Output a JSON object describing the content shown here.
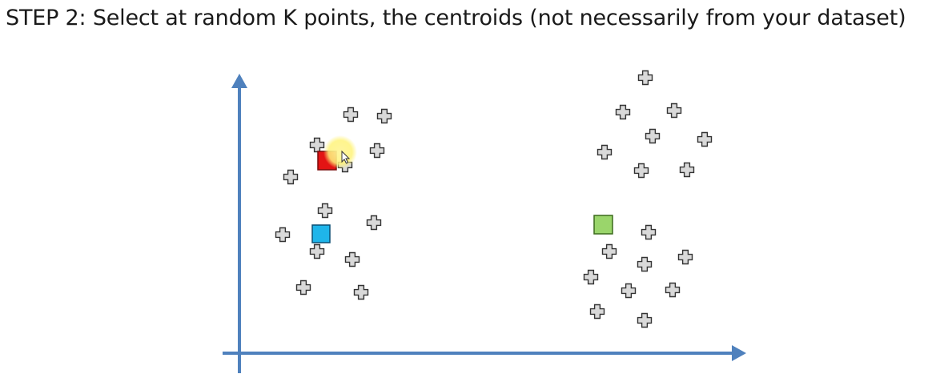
{
  "slide": {
    "title_step": "STEP 2:",
    "title_text": " Select at random K points, the centroids (not necessarily from your dataset)"
  },
  "colors": {
    "axis": "#4f81bd",
    "point_fill": "#d9d9d9",
    "point_stroke": "#333333",
    "centroid_red": "#e31414",
    "centroid_blue": "#1fb5ea",
    "centroid_green": "#9ad56b",
    "cursor_highlight": "#fff37a"
  },
  "icons": {
    "data_point": "plus-shape-icon",
    "centroid": "square-icon",
    "cursor": "mouse-pointer-icon"
  },
  "plot": {
    "x_axis_label": "",
    "y_axis_label": ""
  }
}
